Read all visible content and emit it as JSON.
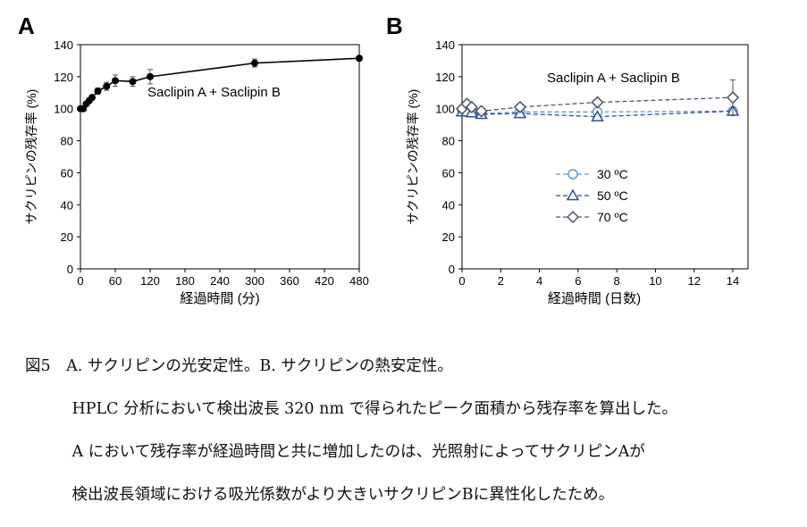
{
  "chart_data": [
    {
      "type": "line",
      "panel_label": "A",
      "annotation": "Saclipin A + Saclipin B",
      "xlabel": "経過時間 (分)",
      "ylabel": "サクリピンの残存率 (%)",
      "xlim": [
        0,
        480
      ],
      "ylim": [
        0,
        140
      ],
      "xticks": [
        0,
        60,
        120,
        180,
        240,
        300,
        360,
        420,
        480
      ],
      "yticks": [
        0,
        20,
        40,
        60,
        80,
        100,
        120,
        140
      ],
      "series": [
        {
          "name": "Saclipin A + Saclipin B",
          "color": "#000000",
          "x": [
            0,
            5,
            10,
            15,
            20,
            30,
            45,
            60,
            90,
            120,
            300,
            480
          ],
          "y": [
            100,
            100,
            103,
            105,
            107,
            111,
            114,
            117.5,
            117,
            120,
            128.5,
            131.5
          ],
          "err": [
            0.5,
            0.5,
            1,
            1.5,
            1.5,
            2,
            2.5,
            3.5,
            3,
            4.5,
            2.5,
            1
          ]
        }
      ]
    },
    {
      "type": "line",
      "panel_label": "B",
      "annotation": "Saclipin A + Saclipin B",
      "xlabel": "経過時間 (日数)",
      "ylabel": "サクリピンの残存率 (%)",
      "xlim": [
        0,
        14
      ],
      "ylim": [
        0,
        140
      ],
      "xticks": [
        0,
        2,
        4,
        6,
        8,
        10,
        12,
        14
      ],
      "yticks": [
        0,
        20,
        40,
        60,
        80,
        100,
        120,
        140
      ],
      "legend_position": "center-left",
      "series": [
        {
          "name": "30 ºC",
          "marker": "circle",
          "color": "#5b9bd5",
          "x": [
            0,
            0.25,
            0.5,
            1,
            3,
            7,
            14
          ],
          "y": [
            99,
            98,
            98,
            97,
            98,
            98,
            98.5
          ],
          "err": [
            0,
            0,
            0,
            0,
            0,
            0,
            0
          ]
        },
        {
          "name": "50 ºC",
          "marker": "triangle",
          "color": "#2f4f8f",
          "x": [
            0,
            0.25,
            0.5,
            1,
            3,
            7,
            14
          ],
          "y": [
            98,
            98,
            97.5,
            96.5,
            97,
            95,
            98.5
          ],
          "err": [
            0,
            0,
            0,
            0,
            0,
            0,
            0
          ]
        },
        {
          "name": "70 ºC",
          "marker": "diamond",
          "color": "#4d5566",
          "x": [
            0,
            0.25,
            0.5,
            1,
            3,
            7,
            14
          ],
          "y": [
            100,
            103,
            101,
            98.5,
            101,
            104,
            107
          ],
          "err": [
            0,
            0,
            0,
            0,
            0,
            0,
            11
          ]
        }
      ]
    }
  ],
  "caption": {
    "lines": [
      "図5　A. サクリピンの光安定性。B. サクリピンの熱安定性。",
      "　　　HPLC 分析において検出波長 320 nm で得られたピーク面積から残存率を算出した。",
      "　　　A において残存率が経過時間と共に増加したのは、光照射によってサクリピンAが",
      "　　　検出波長領域における吸光係数がより大きいサクリピンBに異性化したため。"
    ]
  }
}
